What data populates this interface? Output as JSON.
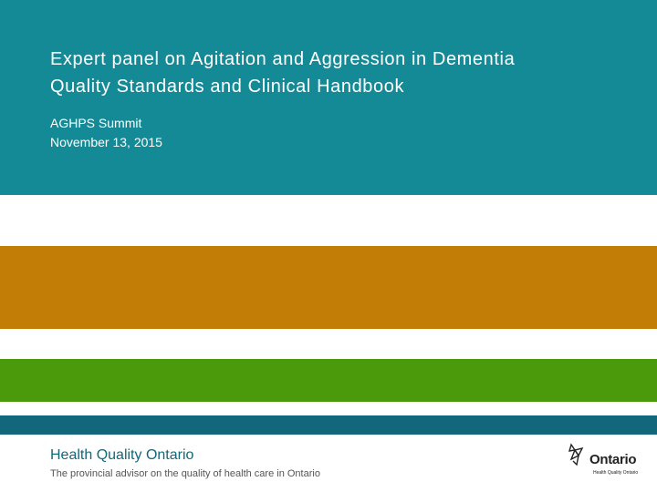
{
  "slide": {
    "title_line1": "Expert panel on Agitation and Aggression in Dementia",
    "title_line2": "Quality Standards and Clinical Handbook",
    "subtitle_line1": "AGHPS Summit",
    "subtitle_line2": "November 13, 2015"
  },
  "footer": {
    "organization": "Health Quality Ontario",
    "tagline": "The provincial advisor on the quality of health care in Ontario"
  },
  "logo": {
    "wordmark": "Ontario",
    "subtext": "Health Quality Ontario",
    "icon": "trillium-icon"
  },
  "colors": {
    "header": "#148a96",
    "orange_band": "#c17d06",
    "green_band": "#4a9a0c",
    "teal_band": "#12677a"
  }
}
